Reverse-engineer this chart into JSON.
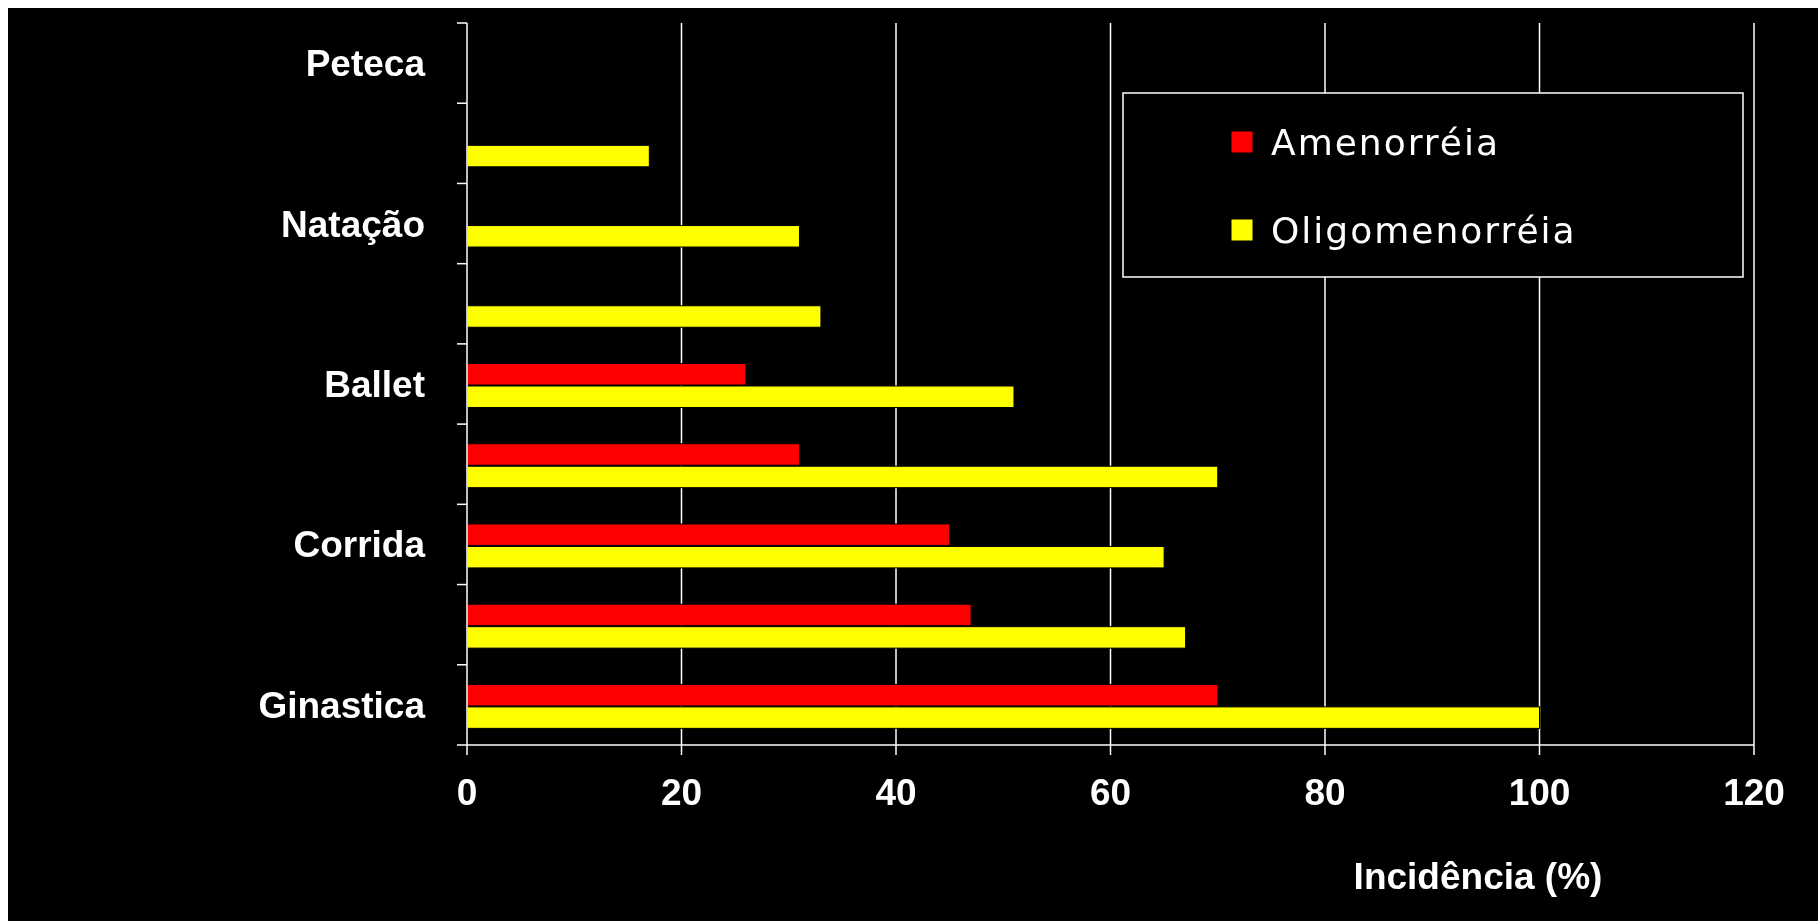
{
  "chart_data": {
    "type": "bar",
    "orientation": "horizontal",
    "xlabel": "Incidência (%)",
    "categories": [
      "Peteca",
      null,
      "Natação",
      null,
      "Ballet",
      null,
      "Corrida",
      null,
      "Ginastica"
    ],
    "series": [
      {
        "name": "Amenorréia",
        "color": "#ff0000",
        "values": [
          null,
          null,
          null,
          null,
          26,
          31,
          45,
          47,
          70
        ]
      },
      {
        "name": "Oligomenorréia",
        "color": "#ffff00",
        "values": [
          null,
          17,
          31,
          33,
          51,
          70,
          65,
          67,
          100
        ]
      }
    ],
    "xlim": [
      0,
      120
    ],
    "xticks": [
      0,
      20,
      40,
      60,
      80,
      100,
      120
    ],
    "grid": "x",
    "legend": "top right"
  }
}
